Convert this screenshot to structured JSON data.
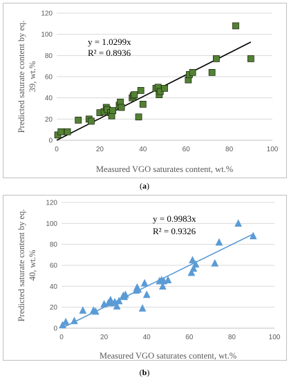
{
  "chart_data": [
    {
      "id": "a",
      "type": "scatter",
      "caption": "(a)",
      "caption_letter": "a",
      "xlabel": "Measured VGO saturates content, wt.%",
      "ylabel_line1": "Predicted saturate content by eq.",
      "ylabel_line2": "39, wt.%",
      "xlim": [
        0,
        100
      ],
      "ylim": [
        0,
        120
      ],
      "xticks": [
        0,
        20,
        40,
        60,
        80,
        100
      ],
      "yticks": [
        0,
        20,
        40,
        60,
        80,
        100,
        120
      ],
      "equation": "y = 1.0299x",
      "r2": "R² = 0.8936",
      "trend_slope": 1.0299,
      "trend_x": [
        0,
        90
      ],
      "marker": "square",
      "marker_color": "#548235",
      "marker_edge": "#1f2d10",
      "line_color": "#000000",
      "grid": true,
      "points": [
        [
          0.5,
          5
        ],
        [
          2,
          8
        ],
        [
          5,
          8
        ],
        [
          10,
          19
        ],
        [
          15,
          20
        ],
        [
          16,
          18
        ],
        [
          20,
          26
        ],
        [
          22,
          27
        ],
        [
          23,
          31
        ],
        [
          23.5,
          29
        ],
        [
          25,
          26
        ],
        [
          25.5,
          23
        ],
        [
          26,
          28
        ],
        [
          29,
          33
        ],
        [
          29.5,
          36
        ],
        [
          30,
          31
        ],
        [
          35,
          40
        ],
        [
          35.5,
          42
        ],
        [
          36,
          43
        ],
        [
          38,
          22
        ],
        [
          39,
          47
        ],
        [
          40,
          34
        ],
        [
          46,
          49
        ],
        [
          47,
          50
        ],
        [
          47.5,
          43
        ],
        [
          48,
          46
        ],
        [
          50,
          49
        ],
        [
          61,
          57
        ],
        [
          61.5,
          62
        ],
        [
          63,
          64
        ],
        [
          72,
          64
        ],
        [
          74,
          77
        ],
        [
          83,
          108
        ],
        [
          90,
          77
        ]
      ]
    },
    {
      "id": "b",
      "type": "scatter",
      "caption": "(b)",
      "caption_letter": "b",
      "xlabel": "Measured VGO saturates content, wt.%",
      "ylabel_line1": "Predicted saturate content by eq.",
      "ylabel_line2": "40, wt.%",
      "xlim": [
        0,
        100
      ],
      "ylim": [
        0,
        120
      ],
      "xticks": [
        0,
        20,
        40,
        60,
        80,
        100
      ],
      "yticks": [
        0,
        20,
        40,
        60,
        80,
        100,
        120
      ],
      "equation": "y = 0.9983x",
      "r2": "R² = 0.9326",
      "trend_slope": 0.9983,
      "trend_x": [
        0,
        90
      ],
      "marker": "triangle",
      "marker_color": "#5b9bd5",
      "marker_edge": "#5b9bd5",
      "line_color": "#5b9bd5",
      "grid": true,
      "points": [
        [
          0.5,
          3
        ],
        [
          2,
          6
        ],
        [
          6,
          7
        ],
        [
          10,
          17
        ],
        [
          15,
          17
        ],
        [
          16,
          16
        ],
        [
          20,
          23
        ],
        [
          22,
          24
        ],
        [
          23,
          27
        ],
        [
          23.5,
          24
        ],
        [
          25,
          25
        ],
        [
          26,
          21
        ],
        [
          27,
          26
        ],
        [
          29,
          31
        ],
        [
          29.5,
          30
        ],
        [
          30,
          32
        ],
        [
          35,
          36
        ],
        [
          35.5,
          39
        ],
        [
          36,
          37
        ],
        [
          38,
          19
        ],
        [
          39,
          43
        ],
        [
          40,
          32
        ],
        [
          46,
          45
        ],
        [
          47,
          46
        ],
        [
          47.5,
          40
        ],
        [
          48,
          45
        ],
        [
          50,
          46
        ],
        [
          61,
          53
        ],
        [
          61.5,
          65
        ],
        [
          62,
          57
        ],
        [
          63,
          61
        ],
        [
          72,
          62
        ],
        [
          74,
          82
        ],
        [
          83,
          100
        ],
        [
          90,
          88
        ]
      ]
    }
  ]
}
